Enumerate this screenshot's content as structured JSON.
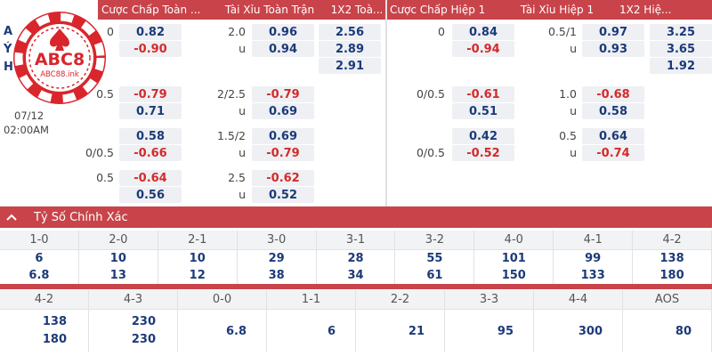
{
  "header": {
    "col1": "Cược Chấp Toàn ...",
    "col2": "Tài Xỉu Toàn Trận",
    "col3": "1X2 Toà...",
    "col4": "Cược Chấp Hiệp 1",
    "col5": "Tài Xỉu Hiệp 1",
    "col6": "1X2 Hiệ..."
  },
  "match": {
    "date": "07/12",
    "time": "02:00AM",
    "team_a_initial": "A",
    "team_b_initial": "Ý",
    "draw_initial": "H"
  },
  "logo": {
    "text": "ABC8",
    "site": "ABC88.ink"
  },
  "full": {
    "r1": {
      "hcap_line": "0",
      "hcap_odd": "0.82",
      "ou_line": "2.0",
      "ou_odd": "0.96",
      "x12": "2.56"
    },
    "r2": {
      "hcap_odd": "-0.90",
      "ou_line": "u",
      "ou_odd": "0.94",
      "x12": "2.89"
    },
    "r3": {
      "x12": "2.91"
    },
    "r4": {
      "hcap_line": "0.5",
      "hcap_odd": "-0.79",
      "ou_line": "2/2.5",
      "ou_odd": "-0.79"
    },
    "r5": {
      "hcap_odd": "0.71",
      "ou_line": "u",
      "ou_odd": "0.69"
    },
    "r6": {
      "hcap_odd": "0.58",
      "ou_line": "1.5/2",
      "ou_odd": "0.69"
    },
    "r7": {
      "hcap_line": "0/0.5",
      "hcap_odd": "-0.66",
      "ou_line": "u",
      "ou_odd": "-0.79"
    },
    "r8": {
      "hcap_line": "0.5",
      "hcap_odd": "-0.64",
      "ou_line": "2.5",
      "ou_odd": "-0.62"
    },
    "r9": {
      "hcap_odd": "0.56",
      "ou_line": "u",
      "ou_odd": "0.52"
    }
  },
  "half": {
    "r1": {
      "hcap_line": "0",
      "hcap_odd": "0.84",
      "ou_line": "0.5/1",
      "ou_odd": "0.97",
      "x12": "3.25"
    },
    "r2": {
      "hcap_odd": "-0.94",
      "ou_line": "u",
      "ou_odd": "0.93",
      "x12": "3.65"
    },
    "r3": {
      "x12": "1.92"
    },
    "r4": {
      "hcap_line": "0/0.5",
      "hcap_odd": "-0.61",
      "ou_line": "1.0",
      "ou_odd": "-0.68"
    },
    "r5": {
      "hcap_odd": "0.51",
      "ou_line": "u",
      "ou_odd": "0.58"
    },
    "r6": {
      "hcap_odd": "0.42",
      "ou_line": "0.5",
      "ou_odd": "0.64"
    },
    "r7": {
      "hcap_line": "0/0.5",
      "hcap_odd": "-0.52",
      "ou_line": "u",
      "ou_odd": "-0.74"
    }
  },
  "correct_score": {
    "title": "Tỷ Số Chính Xác",
    "row1": {
      "scores": [
        "1-0",
        "2-0",
        "2-1",
        "3-0",
        "3-1",
        "3-2",
        "4-0",
        "4-1",
        "4-2"
      ],
      "home": [
        "6",
        "10",
        "10",
        "29",
        "28",
        "55",
        "101",
        "99",
        "138"
      ],
      "away": [
        "6.8",
        "13",
        "12",
        "38",
        "34",
        "61",
        "150",
        "133",
        "180"
      ]
    },
    "row2": {
      "scores": [
        "4-2",
        "4-3",
        "0-0",
        "1-1",
        "2-2",
        "3-3",
        "4-4",
        "AOS"
      ],
      "col_4_2": [
        "138",
        "180"
      ],
      "col_4_3": [
        "230",
        "230"
      ],
      "single": [
        "6.8",
        "6",
        "21",
        "95",
        "300",
        "80"
      ]
    }
  },
  "colors": {
    "accent": "#c8444a",
    "positive": "#1c3a78",
    "negative": "#d42a2a"
  }
}
